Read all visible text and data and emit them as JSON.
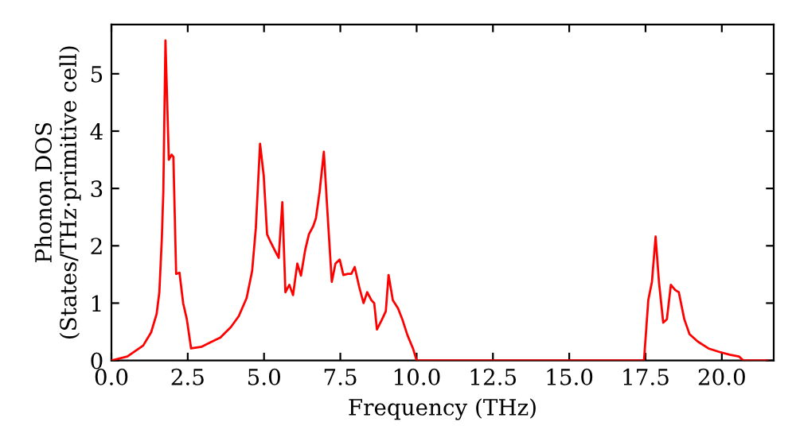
{
  "chart_data": {
    "type": "line",
    "xlabel": "Frequency (THz)",
    "ylabel": "Phonon DOS\n(States/THz·primitive cell)",
    "xlim": [
      0,
      21.7
    ],
    "ylim": [
      0,
      5.86
    ],
    "xticks": [
      {
        "value": 0,
        "label": "0.0"
      },
      {
        "value": 2.5,
        "label": "2.5"
      },
      {
        "value": 5,
        "label": "5.0"
      },
      {
        "value": 7.5,
        "label": "7.5"
      },
      {
        "value": 10,
        "label": "10.0"
      },
      {
        "value": 12.5,
        "label": "12.5"
      },
      {
        "value": 15,
        "label": "15.0"
      },
      {
        "value": 17.5,
        "label": "17.5"
      },
      {
        "value": 20,
        "label": "20.0"
      }
    ],
    "yticks": [
      0,
      1,
      2,
      3,
      4,
      5
    ],
    "grid": false,
    "marker": "none",
    "line_style": "solid",
    "series": [
      {
        "color": "#ff0000",
        "x": [
          0,
          0.52,
          1.04,
          1.3,
          1.48,
          1.57,
          1.65,
          1.7,
          1.77,
          1.88,
          1.97,
          2.03,
          2.12,
          2.23,
          2.35,
          2.47,
          2.61,
          2.96,
          3.22,
          3.57,
          3.91,
          4.17,
          4.43,
          4.61,
          4.73,
          4.87,
          4.99,
          5.1,
          5.22,
          5.39,
          5.48,
          5.6,
          5.7,
          5.83,
          5.95,
          6.09,
          6.21,
          6.35,
          6.47,
          6.61,
          6.7,
          6.82,
          6.96,
          7.08,
          7.22,
          7.34,
          7.48,
          7.6,
          7.74,
          7.86,
          7.97,
          8.12,
          8.26,
          8.38,
          8.52,
          8.61,
          8.7,
          8.87,
          8.99,
          9.08,
          9.22,
          9.39,
          9.53,
          9.7,
          9.88,
          10.0,
          17.45,
          17.59,
          17.71,
          17.83,
          17.94,
          18.08,
          18.2,
          18.33,
          18.47,
          18.59,
          18.77,
          18.94,
          19.21,
          19.56,
          19.91,
          20.26,
          20.56,
          20.7,
          21.5
        ],
        "values": [
          0,
          0.07,
          0.26,
          0.49,
          0.81,
          1.19,
          2.11,
          2.94,
          5.58,
          3.5,
          3.59,
          3.55,
          1.51,
          1.53,
          1.0,
          0.72,
          0.21,
          0.24,
          0.31,
          0.4,
          0.58,
          0.77,
          1.09,
          1.56,
          2.3,
          3.78,
          3.22,
          2.2,
          2.06,
          1.88,
          1.79,
          2.76,
          1.19,
          1.32,
          1.14,
          1.69,
          1.48,
          1.93,
          2.2,
          2.34,
          2.48,
          2.94,
          3.64,
          2.57,
          1.37,
          1.69,
          1.76,
          1.49,
          1.51,
          1.51,
          1.63,
          1.28,
          1.0,
          1.19,
          1.05,
          1.0,
          0.54,
          0.72,
          0.86,
          1.49,
          1.05,
          0.91,
          0.72,
          0.44,
          0.21,
          0,
          0,
          1.05,
          1.37,
          2.16,
          1.37,
          0.66,
          0.72,
          1.32,
          1.23,
          1.19,
          0.72,
          0.46,
          0.33,
          0.21,
          0.15,
          0.1,
          0.07,
          0,
          0
        ]
      }
    ]
  }
}
